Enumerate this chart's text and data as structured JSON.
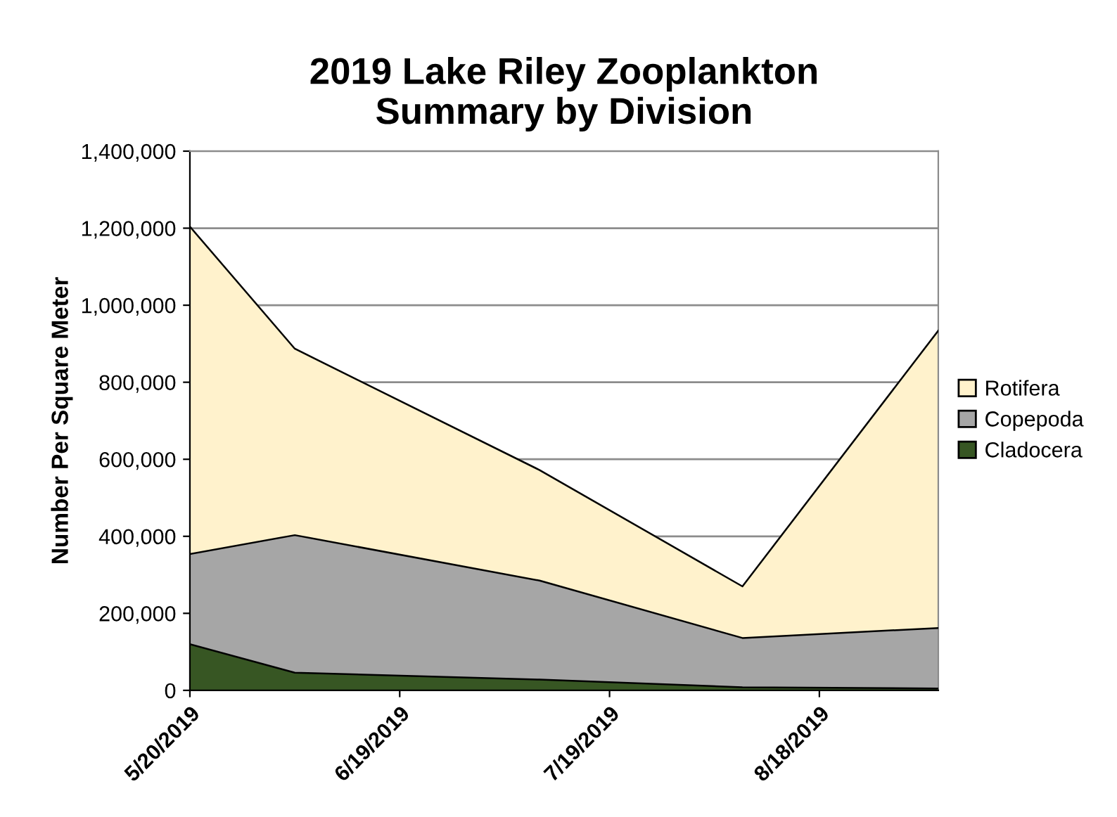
{
  "chart_data": {
    "type": "area",
    "stacked": true,
    "title": "2019 Lake Riley Zooplankton\nSummary by Division",
    "ylabel": "Number Per Square Meter",
    "x": [
      "2019-05-20",
      "2019-06-04",
      "2019-07-09",
      "2019-08-07",
      "2019-09-04"
    ],
    "series": [
      {
        "name": "Cladocera",
        "color": "#375623",
        "values": [
          120000,
          46000,
          28000,
          8000,
          5000
        ]
      },
      {
        "name": "Copepoda",
        "color": "#a6a6a6",
        "values": [
          234000,
          357000,
          257000,
          128000,
          157000
        ]
      },
      {
        "name": "Rotifera",
        "color": "#fff2cc",
        "values": [
          850000,
          484000,
          287000,
          134000,
          772000
        ]
      }
    ],
    "xlim": [
      "2019-05-20",
      "2019-09-04"
    ],
    "xticks": [
      {
        "value": "2019-05-20",
        "label": "5/20/2019"
      },
      {
        "value": "2019-06-19",
        "label": "6/19/2019"
      },
      {
        "value": "2019-07-19",
        "label": "7/19/2019"
      },
      {
        "value": "2019-08-18",
        "label": "8/18/2019"
      }
    ],
    "ylim": [
      0,
      1400000
    ],
    "yticks": [
      {
        "value": 0,
        "label": "0"
      },
      {
        "value": 200000,
        "label": "200,000"
      },
      {
        "value": 400000,
        "label": "400,000"
      },
      {
        "value": 600000,
        "label": "600,000"
      },
      {
        "value": 800000,
        "label": "800,000"
      },
      {
        "value": 1000000,
        "label": "1,000,000"
      },
      {
        "value": 1200000,
        "label": "1,200,000"
      },
      {
        "value": 1400000,
        "label": "1,400,000"
      }
    ],
    "grid": "y",
    "legend": "right",
    "marker": "none",
    "line_style": "solid"
  }
}
